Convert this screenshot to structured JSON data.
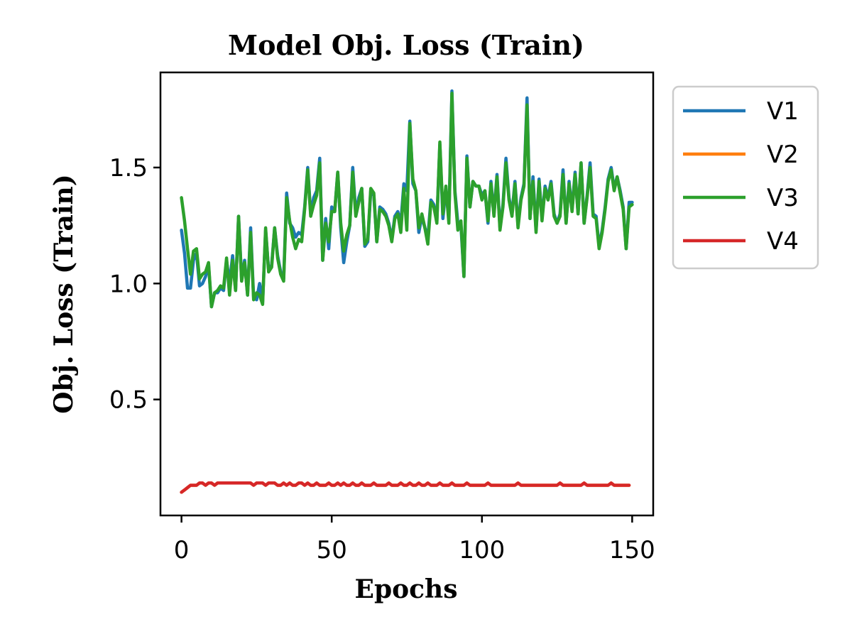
{
  "chart_data": {
    "type": "line",
    "title": "Model Obj. Loss (Train)",
    "xlabel": "Epochs",
    "ylabel": "Obj. Loss (Train)",
    "xlim": [
      -7,
      157
    ],
    "ylim": [
      0.0,
      1.91
    ],
    "xticks": [
      0,
      50,
      100,
      150
    ],
    "yticks": [
      0.5,
      1.0,
      1.5
    ],
    "ytick_labels": [
      "0.5",
      "1.0",
      "1.5"
    ],
    "grid": false,
    "legend_position": "outside-top-right",
    "series": [
      {
        "name": "V1",
        "color": "#1f77b4",
        "x_start": 0,
        "values": [
          1.23,
          1.13,
          0.98,
          0.98,
          1.1,
          1.13,
          0.99,
          1.0,
          1.03,
          1.08,
          0.9,
          0.96,
          0.96,
          0.98,
          0.97,
          1.1,
          1.0,
          1.12,
          0.97,
          1.29,
          1.02,
          1.1,
          0.95,
          1.24,
          0.94,
          0.93,
          1.0,
          0.92,
          1.23,
          1.06,
          1.08,
          1.24,
          1.12,
          1.05,
          1.02,
          1.39,
          1.26,
          1.24,
          1.2,
          1.22,
          1.21,
          1.33,
          1.5,
          1.3,
          1.37,
          1.4,
          1.54,
          1.1,
          1.28,
          1.15,
          1.33,
          1.31,
          1.48,
          1.24,
          1.09,
          1.18,
          1.25,
          1.5,
          1.3,
          1.37,
          1.41,
          1.16,
          1.18,
          1.4,
          1.38,
          1.18,
          1.33,
          1.32,
          1.3,
          1.26,
          1.19,
          1.29,
          1.31,
          1.26,
          1.43,
          1.4,
          1.7,
          1.43,
          1.4,
          1.22,
          1.29,
          1.24,
          1.2,
          1.36,
          1.34,
          1.27,
          1.6,
          1.28,
          1.41,
          1.28,
          1.83,
          1.4,
          1.26,
          1.25,
          1.03,
          1.55,
          1.33,
          1.44,
          1.42,
          1.42,
          1.38,
          1.4,
          1.26,
          1.44,
          1.3,
          1.47,
          1.24,
          1.34,
          1.54,
          1.37,
          1.3,
          1.44,
          1.25,
          1.37,
          1.43,
          1.8,
          1.28,
          1.46,
          1.23,
          1.45,
          1.28,
          1.42,
          1.37,
          1.44,
          1.3,
          1.26,
          1.3,
          1.49,
          1.26,
          1.44,
          1.32,
          1.48,
          1.3,
          1.52,
          1.26,
          1.38,
          1.52,
          1.3,
          1.29,
          1.16,
          1.23,
          1.33,
          1.45,
          1.5,
          1.41,
          1.46,
          1.4,
          1.33,
          1.15,
          1.35,
          1.35
        ]
      },
      {
        "name": "V2",
        "color": "#ff7f0e",
        "x_start": 0,
        "values": [
          0.1,
          0.11,
          0.12,
          0.13,
          0.13,
          0.13,
          0.14,
          0.14,
          0.13,
          0.14,
          0.14,
          0.13,
          0.14,
          0.14,
          0.14,
          0.14,
          0.14,
          0.14,
          0.14,
          0.14,
          0.14,
          0.14,
          0.14,
          0.14,
          0.13,
          0.14,
          0.14,
          0.14,
          0.13,
          0.14,
          0.14,
          0.14,
          0.13,
          0.13,
          0.14,
          0.13,
          0.14,
          0.13,
          0.13,
          0.14,
          0.14,
          0.13,
          0.14,
          0.13,
          0.13,
          0.14,
          0.13,
          0.13,
          0.13,
          0.14,
          0.13,
          0.13,
          0.14,
          0.13,
          0.14,
          0.13,
          0.13,
          0.14,
          0.13,
          0.13,
          0.14,
          0.13,
          0.13,
          0.13,
          0.14,
          0.13,
          0.13,
          0.13,
          0.13,
          0.14,
          0.13,
          0.13,
          0.13,
          0.14,
          0.13,
          0.13,
          0.14,
          0.13,
          0.13,
          0.14,
          0.13,
          0.13,
          0.14,
          0.13,
          0.13,
          0.13,
          0.14,
          0.13,
          0.13,
          0.13,
          0.14,
          0.13,
          0.13,
          0.13,
          0.13,
          0.14,
          0.13,
          0.13,
          0.13,
          0.13,
          0.13,
          0.13,
          0.14,
          0.13,
          0.13,
          0.13,
          0.13,
          0.13,
          0.13,
          0.13,
          0.13,
          0.13,
          0.14,
          0.13,
          0.13,
          0.13,
          0.13,
          0.13,
          0.13,
          0.13,
          0.13,
          0.13,
          0.13,
          0.13,
          0.13,
          0.13,
          0.14,
          0.13,
          0.13,
          0.13,
          0.13,
          0.13,
          0.13,
          0.13,
          0.14,
          0.13,
          0.13,
          0.13,
          0.13,
          0.13,
          0.13,
          0.13,
          0.13,
          0.14,
          0.13,
          0.13,
          0.13,
          0.13,
          0.13,
          0.13
        ]
      },
      {
        "name": "V3",
        "color": "#2ca02c",
        "x_start": 0,
        "values": [
          1.37,
          1.27,
          1.15,
          1.04,
          1.14,
          1.15,
          1.02,
          1.04,
          1.05,
          1.09,
          0.9,
          0.96,
          0.97,
          0.99,
          0.98,
          1.11,
          0.95,
          1.1,
          0.97,
          1.29,
          1.01,
          1.09,
          0.95,
          1.22,
          0.93,
          0.96,
          0.95,
          0.91,
          1.24,
          1.05,
          1.07,
          1.24,
          1.11,
          1.04,
          1.01,
          1.37,
          1.27,
          1.2,
          1.15,
          1.19,
          1.18,
          1.32,
          1.49,
          1.29,
          1.34,
          1.38,
          1.52,
          1.1,
          1.26,
          1.18,
          1.31,
          1.31,
          1.48,
          1.26,
          1.14,
          1.21,
          1.25,
          1.48,
          1.29,
          1.35,
          1.41,
          1.17,
          1.19,
          1.41,
          1.39,
          1.18,
          1.32,
          1.31,
          1.29,
          1.25,
          1.18,
          1.28,
          1.3,
          1.22,
          1.41,
          1.23,
          1.69,
          1.45,
          1.4,
          1.24,
          1.3,
          1.24,
          1.17,
          1.35,
          1.33,
          1.26,
          1.61,
          1.3,
          1.42,
          1.26,
          1.82,
          1.39,
          1.23,
          1.27,
          1.03,
          1.54,
          1.33,
          1.44,
          1.42,
          1.42,
          1.36,
          1.4,
          1.27,
          1.43,
          1.29,
          1.46,
          1.23,
          1.33,
          1.52,
          1.36,
          1.29,
          1.43,
          1.24,
          1.36,
          1.42,
          1.77,
          1.28,
          1.44,
          1.22,
          1.44,
          1.27,
          1.41,
          1.36,
          1.43,
          1.29,
          1.26,
          1.29,
          1.47,
          1.26,
          1.43,
          1.31,
          1.47,
          1.3,
          1.52,
          1.26,
          1.37,
          1.5,
          1.29,
          1.28,
          1.15,
          1.22,
          1.32,
          1.44,
          1.49,
          1.4,
          1.46,
          1.39,
          1.32,
          1.15,
          1.33,
          1.34
        ]
      },
      {
        "name": "V4",
        "color": "#d62728",
        "x_start": 0,
        "values": [
          0.1,
          0.11,
          0.12,
          0.13,
          0.13,
          0.13,
          0.14,
          0.14,
          0.13,
          0.14,
          0.14,
          0.13,
          0.14,
          0.14,
          0.14,
          0.14,
          0.14,
          0.14,
          0.14,
          0.14,
          0.14,
          0.14,
          0.14,
          0.14,
          0.13,
          0.14,
          0.14,
          0.14,
          0.13,
          0.14,
          0.14,
          0.14,
          0.13,
          0.13,
          0.14,
          0.13,
          0.14,
          0.13,
          0.13,
          0.14,
          0.14,
          0.13,
          0.14,
          0.13,
          0.13,
          0.14,
          0.13,
          0.13,
          0.13,
          0.14,
          0.13,
          0.13,
          0.14,
          0.13,
          0.14,
          0.13,
          0.13,
          0.14,
          0.13,
          0.13,
          0.14,
          0.13,
          0.13,
          0.13,
          0.14,
          0.13,
          0.13,
          0.13,
          0.13,
          0.14,
          0.13,
          0.13,
          0.13,
          0.14,
          0.13,
          0.13,
          0.14,
          0.13,
          0.13,
          0.14,
          0.13,
          0.13,
          0.14,
          0.13,
          0.13,
          0.13,
          0.14,
          0.13,
          0.13,
          0.13,
          0.14,
          0.13,
          0.13,
          0.13,
          0.13,
          0.14,
          0.13,
          0.13,
          0.13,
          0.13,
          0.13,
          0.13,
          0.14,
          0.13,
          0.13,
          0.13,
          0.13,
          0.13,
          0.13,
          0.13,
          0.13,
          0.13,
          0.14,
          0.13,
          0.13,
          0.13,
          0.13,
          0.13,
          0.13,
          0.13,
          0.13,
          0.13,
          0.13,
          0.13,
          0.13,
          0.13,
          0.14,
          0.13,
          0.13,
          0.13,
          0.13,
          0.13,
          0.13,
          0.13,
          0.14,
          0.13,
          0.13,
          0.13,
          0.13,
          0.13,
          0.13,
          0.13,
          0.13,
          0.14,
          0.13,
          0.13,
          0.13,
          0.13,
          0.13,
          0.13
        ]
      }
    ]
  }
}
